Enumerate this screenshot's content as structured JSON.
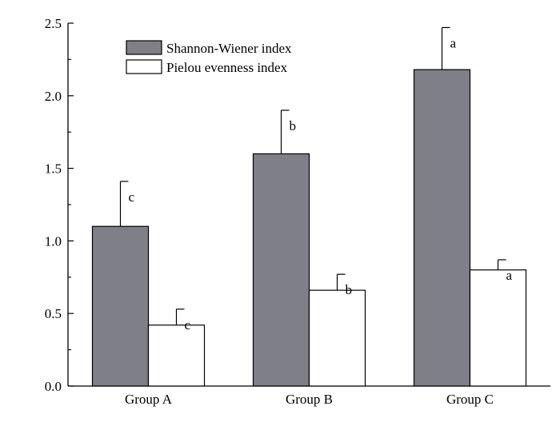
{
  "chart_data": {
    "type": "bar",
    "categories": [
      "Group A",
      "Group B",
      "Group C"
    ],
    "series": [
      {
        "name": "Shannon-Wiener index",
        "values": [
          1.1,
          1.6,
          2.18
        ],
        "errors": [
          0.31,
          0.3,
          0.29
        ],
        "letters": [
          "c",
          "b",
          "a"
        ],
        "color": "#7f8087"
      },
      {
        "name": "Pielou evenness index",
        "values": [
          0.42,
          0.66,
          0.8
        ],
        "errors": [
          0.11,
          0.11,
          0.07
        ],
        "letters": [
          "c",
          "b",
          "a"
        ],
        "color": "#ffffff"
      }
    ],
    "ylim": [
      0,
      2.5
    ],
    "yticks": [
      "0.0",
      "0.5",
      "1.0",
      "1.5",
      "2.0",
      "2.5"
    ],
    "title": "",
    "xlabel": "",
    "ylabel": "",
    "legend_position": "top-left",
    "grid": false
  }
}
